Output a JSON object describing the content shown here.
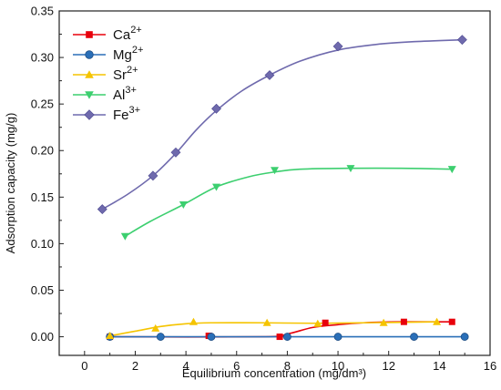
{
  "chart_data": {
    "type": "line",
    "xlabel": "Equilibrium concentration (mg/dm³)",
    "ylabel": "Adsorption capacity (mg/g)",
    "xlim": [
      -1,
      16
    ],
    "ylim": [
      -0.02,
      0.35
    ],
    "xticks": [
      "0",
      "2",
      "4",
      "6",
      "8",
      "10",
      "12",
      "14",
      "16"
    ],
    "yticks": [
      "0.00",
      "0.05",
      "0.10",
      "0.15",
      "0.20",
      "0.25",
      "0.30",
      "0.35"
    ],
    "grid": false,
    "legend_position": "top-left",
    "series": [
      {
        "name": "Ca",
        "charge": "2+",
        "marker": "square",
        "color": "#e8000b",
        "points": [
          [
            1.0,
            0.0
          ],
          [
            4.9,
            0.001
          ],
          [
            7.7,
            0.0
          ],
          [
            9.5,
            0.015
          ],
          [
            12.6,
            0.016
          ],
          [
            14.5,
            0.016
          ]
        ],
        "curve": [
          [
            1.0,
            0.0
          ],
          [
            7.0,
            0.0
          ],
          [
            8.0,
            0.003
          ],
          [
            9.0,
            0.01
          ],
          [
            10.0,
            0.013
          ],
          [
            11.0,
            0.015
          ],
          [
            12.5,
            0.016
          ],
          [
            14.5,
            0.016
          ]
        ]
      },
      {
        "name": "Mg",
        "charge": "2+",
        "marker": "circle",
        "color": "#2a6fb8",
        "points": [
          [
            1.0,
            0.0
          ],
          [
            3.0,
            0.0
          ],
          [
            5.0,
            0.0
          ],
          [
            8.0,
            0.0
          ],
          [
            10.0,
            0.0
          ],
          [
            13.0,
            0.0
          ],
          [
            15.0,
            0.0
          ]
        ],
        "curve": [
          [
            1.0,
            0.0
          ],
          [
            15.0,
            0.0
          ]
        ]
      },
      {
        "name": "Sr",
        "charge": "2+",
        "marker": "triangle-up",
        "color": "#f5c400",
        "points": [
          [
            1.0,
            0.001
          ],
          [
            2.8,
            0.009
          ],
          [
            4.3,
            0.016
          ],
          [
            7.2,
            0.015
          ],
          [
            9.2,
            0.014
          ],
          [
            11.8,
            0.015
          ],
          [
            13.9,
            0.016
          ]
        ],
        "curve": [
          [
            1.0,
            0.001
          ],
          [
            2.0,
            0.006
          ],
          [
            3.0,
            0.011
          ],
          [
            4.0,
            0.014
          ],
          [
            5.0,
            0.015
          ],
          [
            7.0,
            0.015
          ],
          [
            9.0,
            0.0145
          ],
          [
            11.0,
            0.015
          ],
          [
            13.9,
            0.016
          ]
        ]
      },
      {
        "name": "Al",
        "charge": "3+",
        "marker": "triangle-down",
        "color": "#3ccf6f",
        "points": [
          [
            1.6,
            0.108
          ],
          [
            3.9,
            0.142
          ],
          [
            5.2,
            0.161
          ],
          [
            7.5,
            0.179
          ],
          [
            10.5,
            0.181
          ],
          [
            14.5,
            0.18
          ]
        ],
        "curve": [
          [
            1.6,
            0.108
          ],
          [
            2.6,
            0.124
          ],
          [
            3.9,
            0.142
          ],
          [
            5.2,
            0.161
          ],
          [
            6.5,
            0.172
          ],
          [
            7.5,
            0.177
          ],
          [
            8.5,
            0.18
          ],
          [
            10.5,
            0.181
          ],
          [
            12.5,
            0.181
          ],
          [
            14.5,
            0.18
          ]
        ]
      },
      {
        "name": "Fe",
        "charge": "3+",
        "marker": "diamond",
        "color": "#6f6aad",
        "points": [
          [
            0.7,
            0.137
          ],
          [
            2.7,
            0.173
          ],
          [
            3.6,
            0.198
          ],
          [
            5.2,
            0.245
          ],
          [
            7.3,
            0.281
          ],
          [
            10.0,
            0.312
          ],
          [
            14.9,
            0.319
          ]
        ],
        "curve": [
          [
            0.7,
            0.137
          ],
          [
            1.7,
            0.153
          ],
          [
            2.7,
            0.173
          ],
          [
            3.6,
            0.197
          ],
          [
            4.4,
            0.222
          ],
          [
            5.2,
            0.243
          ],
          [
            6.2,
            0.264
          ],
          [
            7.3,
            0.281
          ],
          [
            8.5,
            0.296
          ],
          [
            10.0,
            0.308
          ],
          [
            11.5,
            0.314
          ],
          [
            13.0,
            0.317
          ],
          [
            14.9,
            0.319
          ]
        ]
      }
    ]
  }
}
